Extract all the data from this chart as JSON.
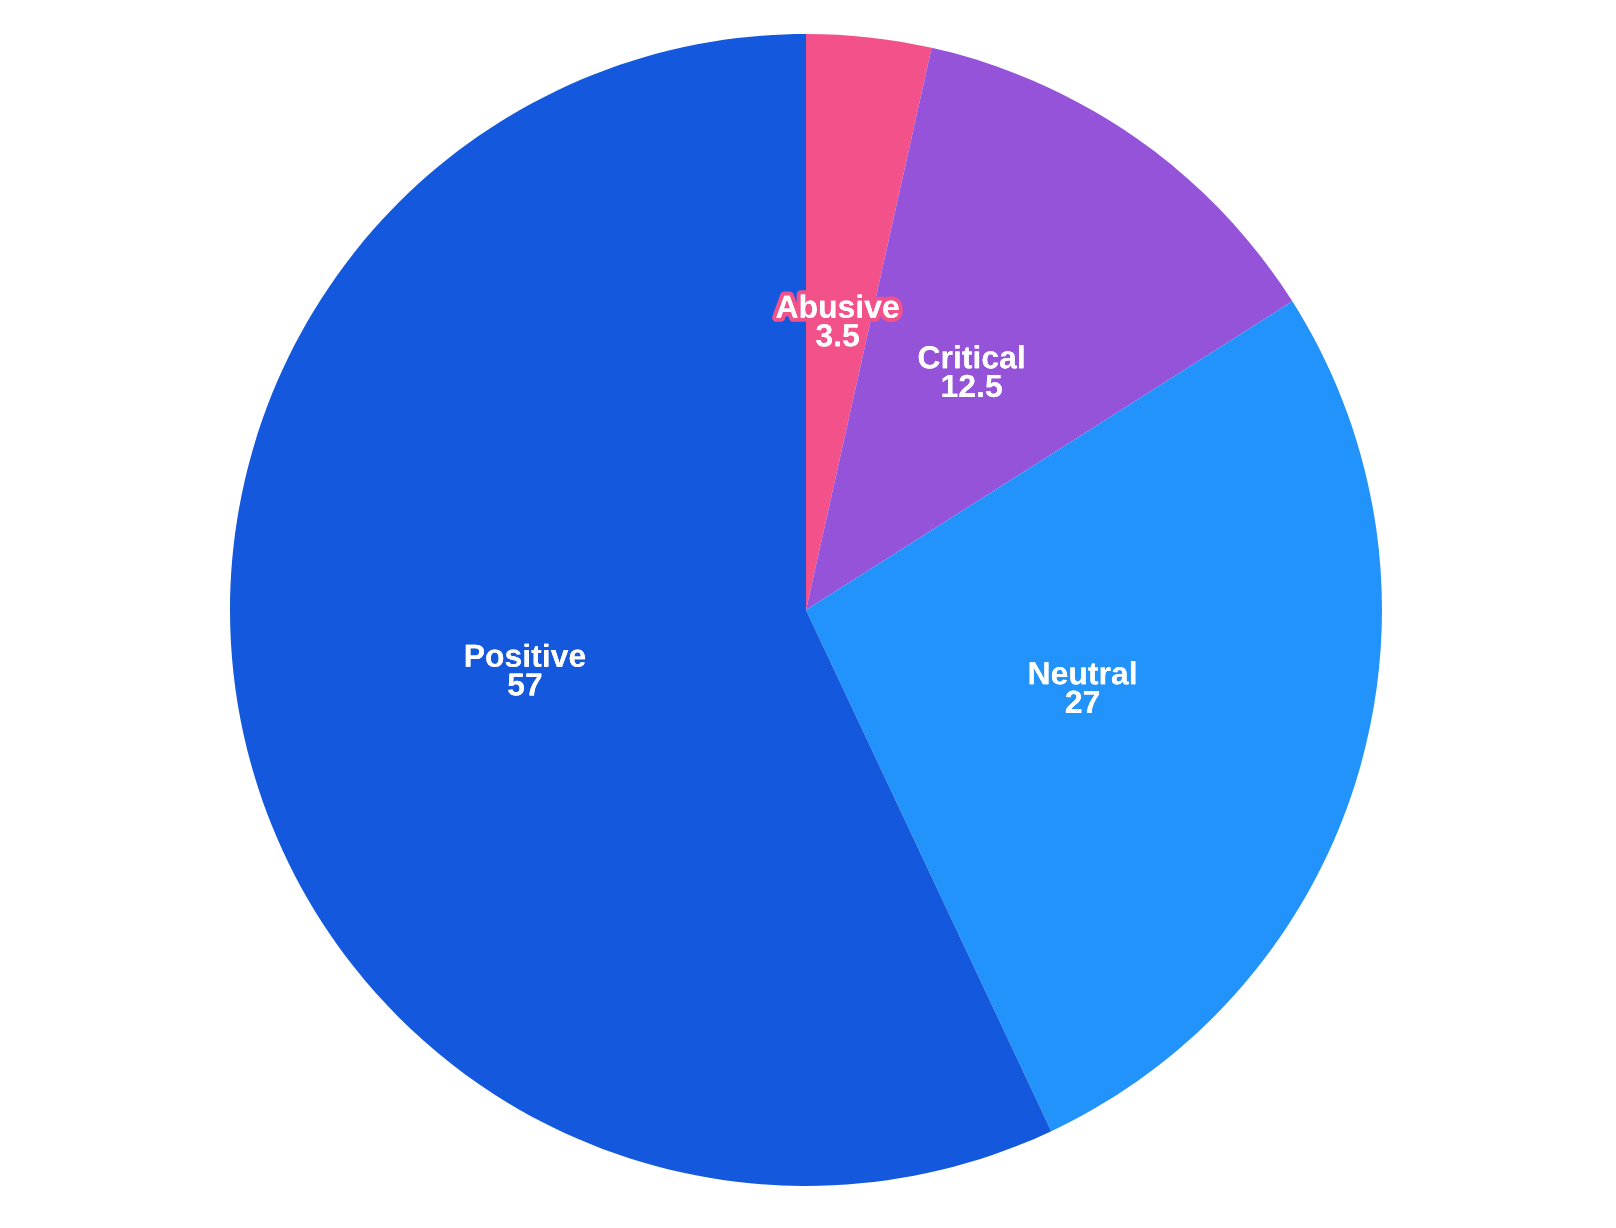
{
  "chart_data": {
    "type": "pie",
    "categories": [
      "Abusive",
      "Critical",
      "Neutral",
      "Positive"
    ],
    "values": [
      3.5,
      12.5,
      27,
      57
    ],
    "colors": [
      "#f25189",
      "#9553d9",
      "#2293fb",
      "#1459dd"
    ],
    "data_labels": true,
    "legend": false
  }
}
